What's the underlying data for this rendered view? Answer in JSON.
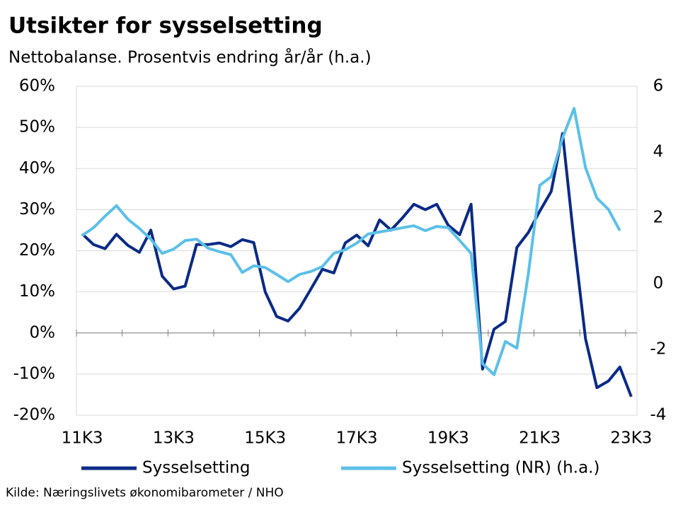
{
  "chart_data": {
    "type": "line",
    "title": "Utsikter for sysselsetting",
    "subtitle": "Nettobalanse. Prosentvis endring år/år (h.a.)",
    "source": "Kilde: Næringslivets økonomibarometer / NHO",
    "categories": [
      "11K3",
      null,
      null,
      null,
      null,
      null,
      null,
      null,
      "13K3",
      null,
      null,
      null,
      null,
      null,
      null,
      null,
      "15K3",
      null,
      null,
      null,
      null,
      null,
      null,
      null,
      "17K3",
      null,
      null,
      null,
      null,
      null,
      null,
      null,
      "19K3",
      null,
      null,
      null,
      null,
      null,
      null,
      null,
      "21K3",
      null,
      null,
      null,
      null,
      null,
      null,
      null,
      "23K3"
    ],
    "series": [
      {
        "name": "Sysselsetting",
        "color": "#0a2a86",
        "values": [
          24.1,
          21.5,
          20.5,
          24,
          21.3,
          19.6,
          25,
          13.8,
          10.7,
          11.4,
          21.5,
          21.5,
          21.9,
          21,
          22.7,
          22,
          10,
          4,
          2.9,
          6,
          10.7,
          15.5,
          14.6,
          21.9,
          23.8,
          21.2,
          27.5,
          25,
          28,
          31.3,
          30,
          31.3,
          26.2,
          23.9,
          31.3,
          -8.8,
          0.9,
          2.8,
          20.8,
          24.4,
          29.6,
          34.4,
          48.5,
          22.4,
          -1.4,
          -13.3,
          -11.7,
          -8.3,
          -15.5
        ]
      },
      {
        "name": "Sysselsetting (NR) (h.a.)",
        "color": "#5bc0e8",
        "axis": "y2",
        "values": [
          1.46,
          1.7,
          2.05,
          2.37,
          1.96,
          1.68,
          1.35,
          0.92,
          1.05,
          1.31,
          1.35,
          1.08,
          0.97,
          0.88,
          0.34,
          0.54,
          0.49,
          0.28,
          0.06,
          0.28,
          0.37,
          0.52,
          0.92,
          1.03,
          1.23,
          1.51,
          1.57,
          1.63,
          1.7,
          1.76,
          1.61,
          1.74,
          1.7,
          1.31,
          0.92,
          -2.43,
          -2.77,
          -1.76,
          -1.96,
          0.28,
          2.99,
          3.25,
          4.43,
          5.33,
          3.53,
          2.6,
          2.26,
          1.61,
          null
        ]
      }
    ],
    "ylim": [
      -20,
      60
    ],
    "yticks": [
      {
        "value": -20,
        "label": "-20%"
      },
      {
        "value": -10,
        "label": "-10%"
      },
      {
        "value": 0,
        "label": "0%"
      },
      {
        "value": 10,
        "label": "10%"
      },
      {
        "value": 20,
        "label": "20%"
      },
      {
        "value": 30,
        "label": "30%"
      },
      {
        "value": 40,
        "label": "40%"
      },
      {
        "value": 50,
        "label": "50%"
      },
      {
        "value": 60,
        "label": "60%"
      }
    ],
    "y2lim": [
      -4,
      6
    ],
    "y2ticks": [
      -4,
      -2,
      0,
      2,
      4,
      6
    ],
    "grid": true
  }
}
